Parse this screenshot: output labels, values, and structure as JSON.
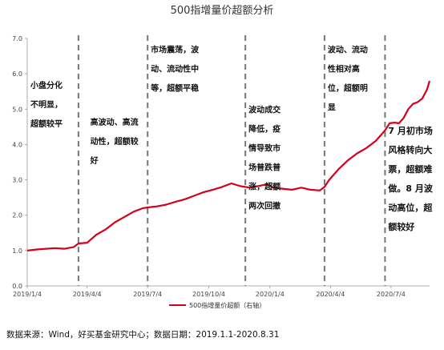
{
  "chart_data": {
    "type": "line",
    "title": "500指增量价超额分析",
    "xlabel": "",
    "ylabel": "",
    "ylim": [
      0,
      7
    ],
    "yticks": [
      "0.0",
      "1.0",
      "2.0",
      "3.0",
      "4.0",
      "5.0",
      "6.0",
      "7.0"
    ],
    "grid": false,
    "x_tick_labels": [
      "2019/1/4",
      "2019/4/4",
      "2019/7/4",
      "2019/10/4",
      "2020/1/4",
      "2020/4/4",
      "2020/7/4"
    ],
    "series": [
      {
        "name": "500指增量价超额（右轴）",
        "color": "#d7001a",
        "x": [
          "2019/1/4",
          "2019/1/18",
          "2019/2/1",
          "2019/2/15",
          "2019/3/1",
          "2019/3/15",
          "2019/3/22",
          "2019/4/4",
          "2019/4/18",
          "2019/5/2",
          "2019/5/16",
          "2019/5/30",
          "2019/6/13",
          "2019/6/27",
          "2019/7/4",
          "2019/7/18",
          "2019/8/1",
          "2019/8/15",
          "2019/8/29",
          "2019/9/12",
          "2019/9/26",
          "2019/10/10",
          "2019/10/24",
          "2019/11/7",
          "2019/11/21",
          "2019/12/5",
          "2019/12/19",
          "2019/12/31",
          "2020/1/9",
          "2020/1/23",
          "2020/2/6",
          "2020/2/20",
          "2020/3/5",
          "2020/3/19",
          "2020/3/26",
          "2020/4/2",
          "2020/4/16",
          "2020/4/30",
          "2020/5/14",
          "2020/5/28",
          "2020/6/11",
          "2020/6/25",
          "2020/7/2",
          "2020/7/9",
          "2020/7/16",
          "2020/7/23",
          "2020/7/30",
          "2020/8/6",
          "2020/8/13",
          "2020/8/20",
          "2020/8/27",
          "2020/8/31"
        ],
        "values": [
          1.0,
          1.03,
          1.05,
          1.07,
          1.05,
          1.1,
          1.2,
          1.22,
          1.45,
          1.6,
          1.8,
          1.95,
          2.1,
          2.2,
          2.22,
          2.25,
          2.3,
          2.38,
          2.45,
          2.55,
          2.65,
          2.72,
          2.8,
          2.9,
          2.82,
          2.78,
          2.83,
          2.88,
          2.78,
          2.75,
          2.72,
          2.78,
          2.72,
          2.7,
          2.8,
          3.0,
          3.3,
          3.55,
          3.75,
          3.9,
          4.1,
          4.4,
          4.6,
          4.62,
          4.6,
          4.75,
          5.0,
          5.15,
          5.2,
          5.3,
          5.55,
          5.8
        ]
      }
    ],
    "phase_dividers": [
      "2019/3/22",
      "2019/7/4",
      "2019/11/28",
      "2020/3/26",
      "2020/6/25"
    ],
    "annotations": [
      {
        "anchor_x": "2019/1/4",
        "anchor_y": 5.6,
        "lines": [
          "小盘分化",
          "不明显，",
          "超额较平"
        ]
      },
      {
        "anchor_x": "2019/4/4",
        "anchor_y": 4.55,
        "lines": [
          "高波动、高流",
          "动性，超额较",
          "好"
        ]
      },
      {
        "anchor_x": "2019/7/4",
        "anchor_y": 6.6,
        "lines": [
          "市场震荡，波",
          "动、流动性中",
          "等，超额平稳"
        ]
      },
      {
        "anchor_x": "2019/11/28",
        "anchor_y": 4.9,
        "lines": [
          "波动成交",
          "降低，疫",
          "情导致市",
          "场普跌普",
          "涨，超额",
          "两次回撤"
        ]
      },
      {
        "anchor_x": "2020/3/26",
        "anchor_y": 6.6,
        "lines": [
          "波动、流动",
          "性相对高",
          "位，超额明",
          "显"
        ]
      },
      {
        "anchor_x": "2020/6/25",
        "anchor_y": 4.3,
        "lines": [
          "7 月初市场",
          "风格转向大",
          "票，超额难",
          "做。8 月波",
          "动高位，超",
          "额较好"
        ]
      }
    ]
  },
  "legend": {
    "position": "bottom-center",
    "label": "500指增量价超额（右轴）"
  },
  "source": "数据来源：Wind，好买基金研究中心；数据日期：2019.1.1-2020.8.31"
}
